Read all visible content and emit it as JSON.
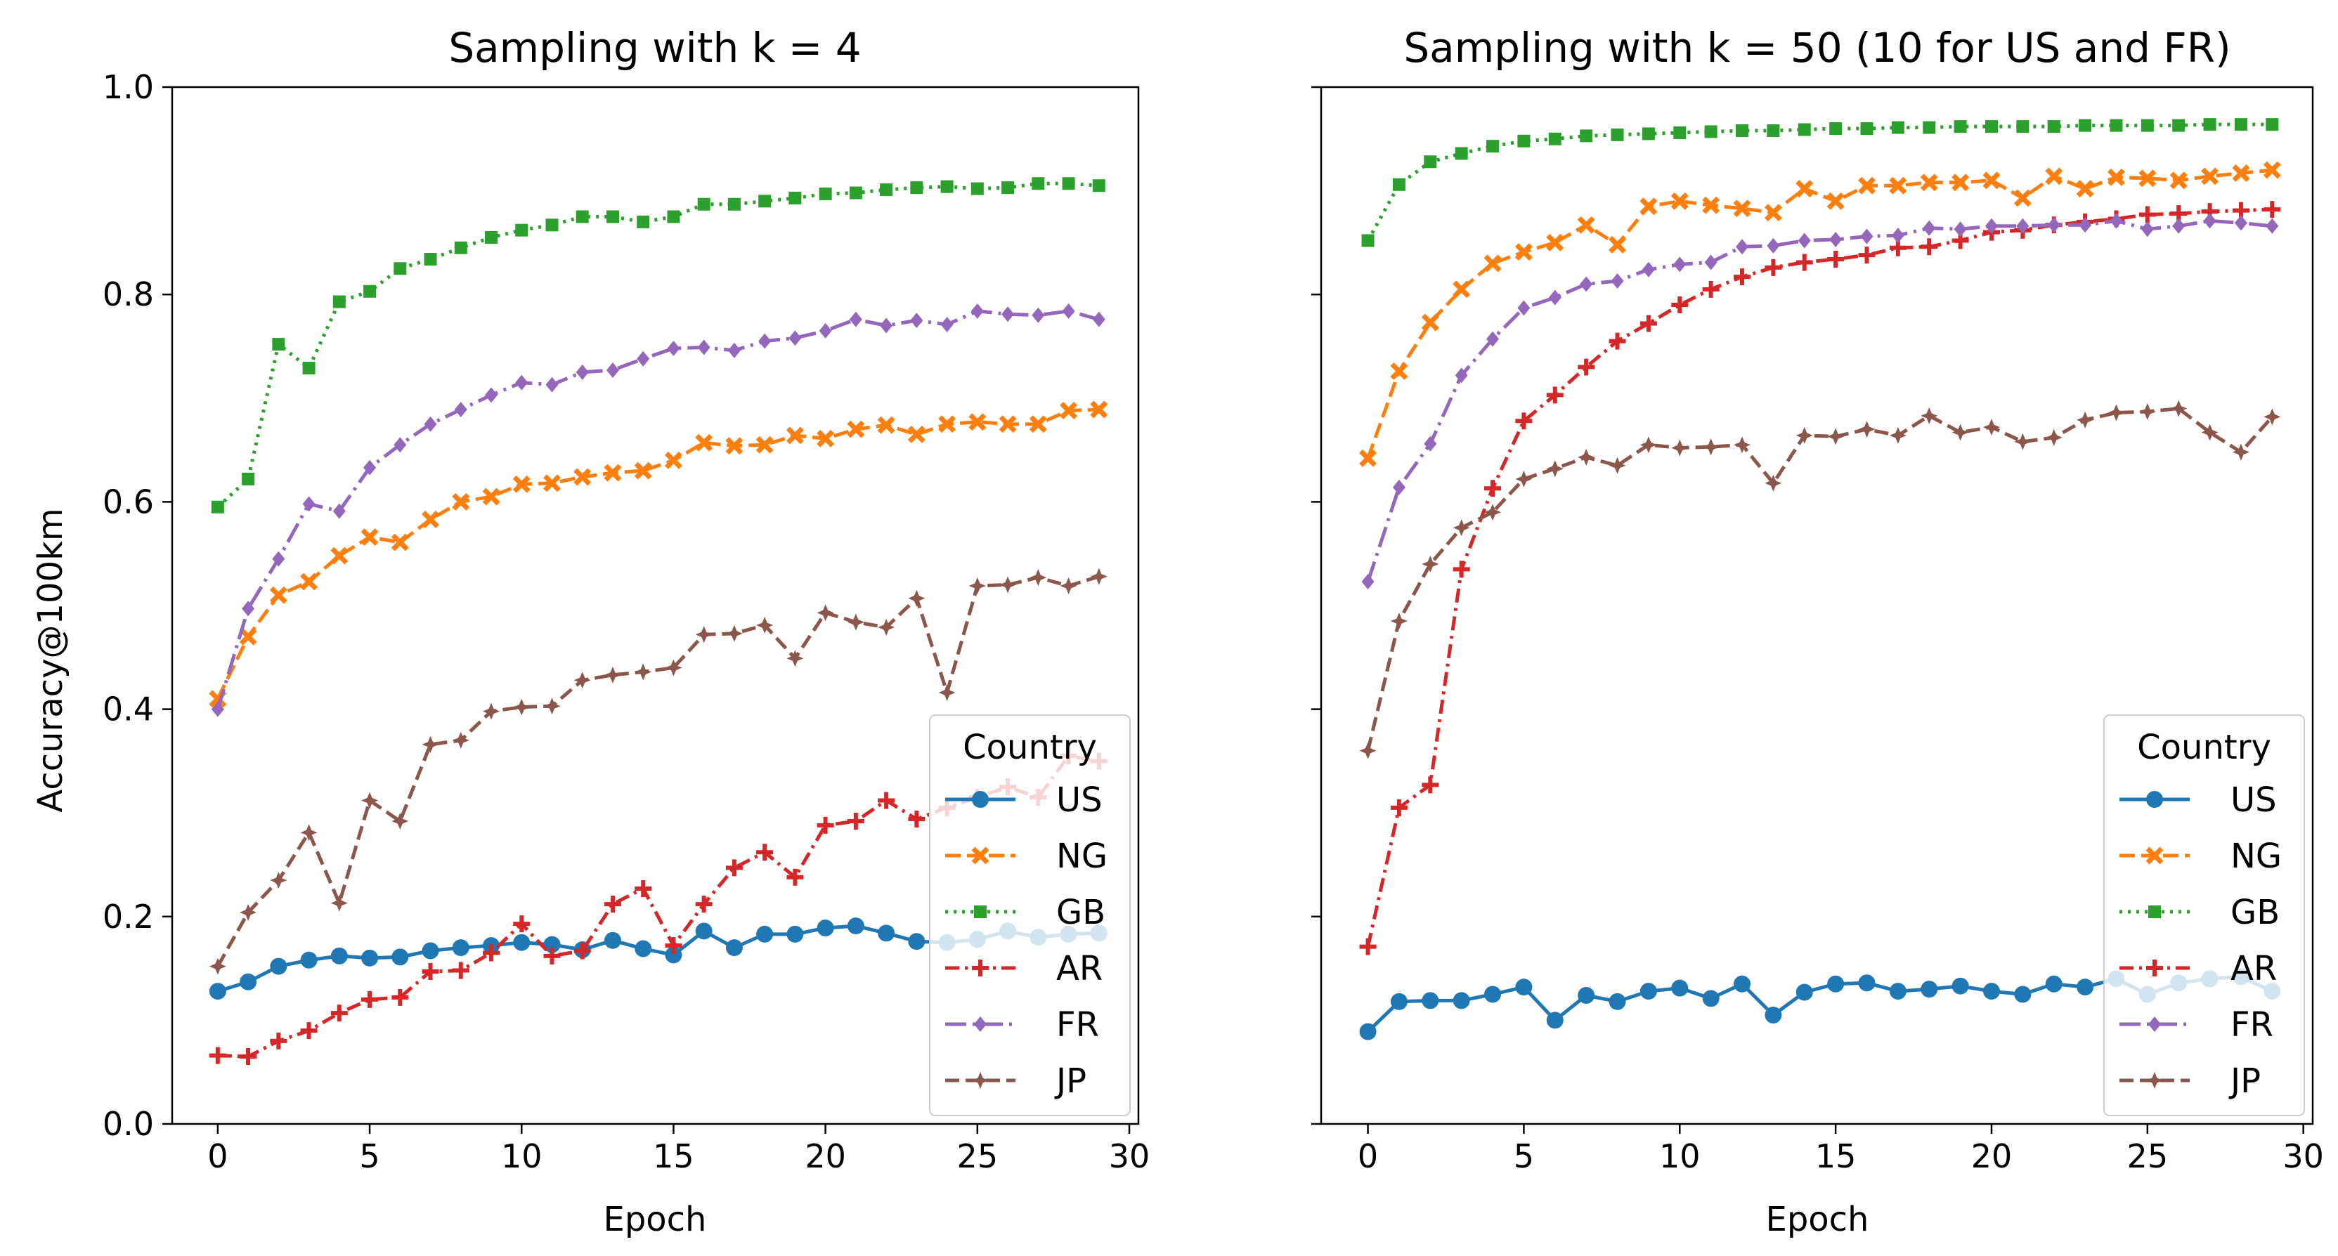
{
  "figure": {
    "colors": {
      "US": "#1f77b4",
      "NG": "#ff7f0e",
      "GB": "#2ca02c",
      "AR": "#d62728",
      "FR": "#9467bd",
      "JP": "#8c564b"
    }
  },
  "chart_data": [
    {
      "type": "line",
      "title": "Sampling with k = 4",
      "xlabel": "Epoch",
      "ylabel": "Accuracy@100km",
      "xlim": [
        -1.5,
        30.3
      ],
      "ylim": [
        0.0,
        1.0
      ],
      "xticks": [
        "0",
        "5",
        "10",
        "15",
        "20",
        "25",
        "30"
      ],
      "yticks": [
        "0.0",
        "0.2",
        "0.4",
        "0.6",
        "0.8",
        "1.0"
      ],
      "grid": false,
      "legend": {
        "title": "Country",
        "position": "lower-right"
      },
      "x": [
        0,
        1,
        2,
        3,
        4,
        5,
        6,
        7,
        8,
        9,
        10,
        11,
        12,
        13,
        14,
        15,
        16,
        17,
        18,
        19,
        20,
        21,
        22,
        23,
        24,
        25,
        26,
        27,
        28,
        29
      ],
      "series": [
        {
          "name": "US",
          "values": [
            0.128,
            0.137,
            0.152,
            0.158,
            0.162,
            0.16,
            0.161,
            0.167,
            0.17,
            0.172,
            0.175,
            0.173,
            0.168,
            0.177,
            0.169,
            0.163,
            0.186,
            0.17,
            0.183,
            0.183,
            0.189,
            0.191,
            0.184,
            0.176,
            0.175,
            0.178,
            0.186,
            0.18,
            0.183,
            0.184
          ]
        },
        {
          "name": "NG",
          "values": [
            0.41,
            0.47,
            0.51,
            0.523,
            0.548,
            0.566,
            0.561,
            0.583,
            0.6,
            0.605,
            0.617,
            0.618,
            0.624,
            0.628,
            0.63,
            0.64,
            0.657,
            0.654,
            0.655,
            0.664,
            0.661,
            0.67,
            0.674,
            0.665,
            0.675,
            0.677,
            0.675,
            0.675,
            0.688,
            0.689
          ]
        },
        {
          "name": "GB",
          "values": [
            0.595,
            0.622,
            0.752,
            0.729,
            0.793,
            0.803,
            0.825,
            0.834,
            0.845,
            0.855,
            0.862,
            0.867,
            0.875,
            0.875,
            0.87,
            0.875,
            0.887,
            0.887,
            0.89,
            0.893,
            0.897,
            0.898,
            0.901,
            0.903,
            0.904,
            0.902,
            0.903,
            0.907,
            0.907,
            0.905
          ]
        },
        {
          "name": "AR",
          "values": [
            0.066,
            0.065,
            0.08,
            0.09,
            0.107,
            0.12,
            0.122,
            0.147,
            0.148,
            0.165,
            0.193,
            0.162,
            0.167,
            0.212,
            0.227,
            0.172,
            0.212,
            0.247,
            0.262,
            0.238,
            0.288,
            0.292,
            0.312,
            0.294,
            0.305,
            0.315,
            0.325,
            0.315,
            0.355,
            0.35
          ]
        },
        {
          "name": "FR",
          "values": [
            0.4,
            0.497,
            0.545,
            0.598,
            0.591,
            0.633,
            0.655,
            0.675,
            0.689,
            0.703,
            0.715,
            0.713,
            0.725,
            0.727,
            0.738,
            0.748,
            0.749,
            0.746,
            0.755,
            0.758,
            0.765,
            0.776,
            0.77,
            0.775,
            0.771,
            0.784,
            0.781,
            0.78,
            0.784,
            0.776
          ]
        },
        {
          "name": "JP",
          "values": [
            0.152,
            0.204,
            0.235,
            0.281,
            0.213,
            0.312,
            0.292,
            0.366,
            0.37,
            0.398,
            0.402,
            0.403,
            0.428,
            0.433,
            0.436,
            0.44,
            0.472,
            0.473,
            0.481,
            0.449,
            0.493,
            0.484,
            0.479,
            0.507,
            0.416,
            0.519,
            0.52,
            0.527,
            0.519,
            0.528
          ]
        }
      ]
    },
    {
      "type": "line",
      "title": "Sampling with k = 50 (10 for US and FR)",
      "xlabel": "Epoch",
      "ylabel": "",
      "xlim": [
        -1.5,
        30.3
      ],
      "ylim": [
        0.0,
        1.0
      ],
      "xticks": [
        "0",
        "5",
        "10",
        "15",
        "20",
        "25",
        "30"
      ],
      "yticks": [],
      "grid": false,
      "legend": {
        "title": "Country",
        "position": "lower-right"
      },
      "x": [
        0,
        1,
        2,
        3,
        4,
        5,
        6,
        7,
        8,
        9,
        10,
        11,
        12,
        13,
        14,
        15,
        16,
        17,
        18,
        19,
        20,
        21,
        22,
        23,
        24,
        25,
        26,
        27,
        28,
        29
      ],
      "series": [
        {
          "name": "US",
          "values": [
            0.089,
            0.118,
            0.119,
            0.119,
            0.125,
            0.132,
            0.1,
            0.124,
            0.118,
            0.128,
            0.131,
            0.121,
            0.135,
            0.105,
            0.127,
            0.135,
            0.136,
            0.128,
            0.13,
            0.133,
            0.128,
            0.125,
            0.135,
            0.132,
            0.14,
            0.125,
            0.136,
            0.14,
            0.142,
            0.128
          ]
        },
        {
          "name": "NG",
          "values": [
            0.642,
            0.726,
            0.773,
            0.805,
            0.83,
            0.841,
            0.85,
            0.867,
            0.848,
            0.885,
            0.89,
            0.886,
            0.883,
            0.879,
            0.902,
            0.89,
            0.905,
            0.905,
            0.908,
            0.908,
            0.91,
            0.893,
            0.914,
            0.902,
            0.913,
            0.912,
            0.91,
            0.914,
            0.917,
            0.92
          ]
        },
        {
          "name": "GB",
          "values": [
            0.852,
            0.906,
            0.928,
            0.936,
            0.943,
            0.948,
            0.95,
            0.953,
            0.954,
            0.955,
            0.956,
            0.957,
            0.958,
            0.958,
            0.959,
            0.96,
            0.96,
            0.961,
            0.961,
            0.962,
            0.962,
            0.962,
            0.962,
            0.963,
            0.963,
            0.963,
            0.963,
            0.964,
            0.964,
            0.964
          ]
        },
        {
          "name": "AR",
          "values": [
            0.171,
            0.305,
            0.327,
            0.535,
            0.613,
            0.678,
            0.703,
            0.73,
            0.755,
            0.772,
            0.79,
            0.805,
            0.817,
            0.826,
            0.831,
            0.834,
            0.838,
            0.845,
            0.846,
            0.852,
            0.86,
            0.862,
            0.867,
            0.87,
            0.873,
            0.877,
            0.878,
            0.88,
            0.881,
            0.882
          ]
        },
        {
          "name": "FR",
          "values": [
            0.523,
            0.614,
            0.656,
            0.722,
            0.757,
            0.787,
            0.797,
            0.81,
            0.813,
            0.824,
            0.829,
            0.831,
            0.846,
            0.847,
            0.852,
            0.853,
            0.856,
            0.857,
            0.864,
            0.863,
            0.866,
            0.866,
            0.867,
            0.867,
            0.871,
            0.863,
            0.866,
            0.871,
            0.869,
            0.866
          ]
        },
        {
          "name": "JP",
          "values": [
            0.36,
            0.485,
            0.54,
            0.575,
            0.59,
            0.622,
            0.632,
            0.643,
            0.635,
            0.655,
            0.652,
            0.653,
            0.655,
            0.618,
            0.664,
            0.663,
            0.67,
            0.664,
            0.683,
            0.667,
            0.672,
            0.658,
            0.662,
            0.679,
            0.686,
            0.687,
            0.69,
            0.667,
            0.648,
            0.682
          ]
        }
      ]
    }
  ]
}
